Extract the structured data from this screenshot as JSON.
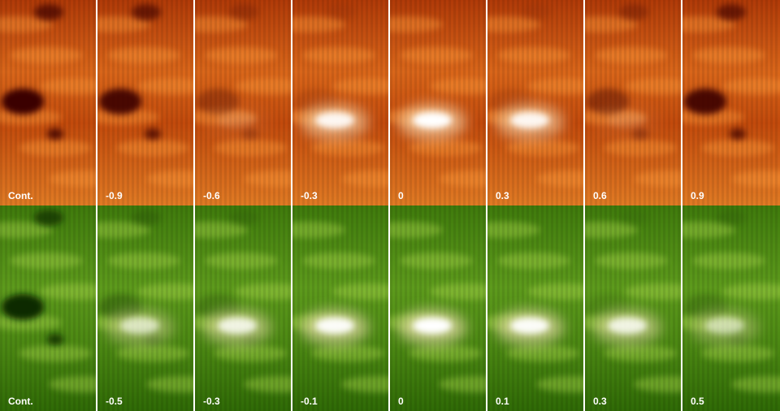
{
  "rows": [
    {
      "labels": [
        "Cont.",
        "-0.9",
        "-0.6",
        "-0.3",
        "0",
        "0.3",
        "0.6",
        "0.9"
      ]
    },
    {
      "labels": [
        "Cont.",
        "-0.5",
        "-0.3",
        "-0.1",
        "0",
        "0.1",
        "0.3",
        "0.5"
      ]
    }
  ]
}
